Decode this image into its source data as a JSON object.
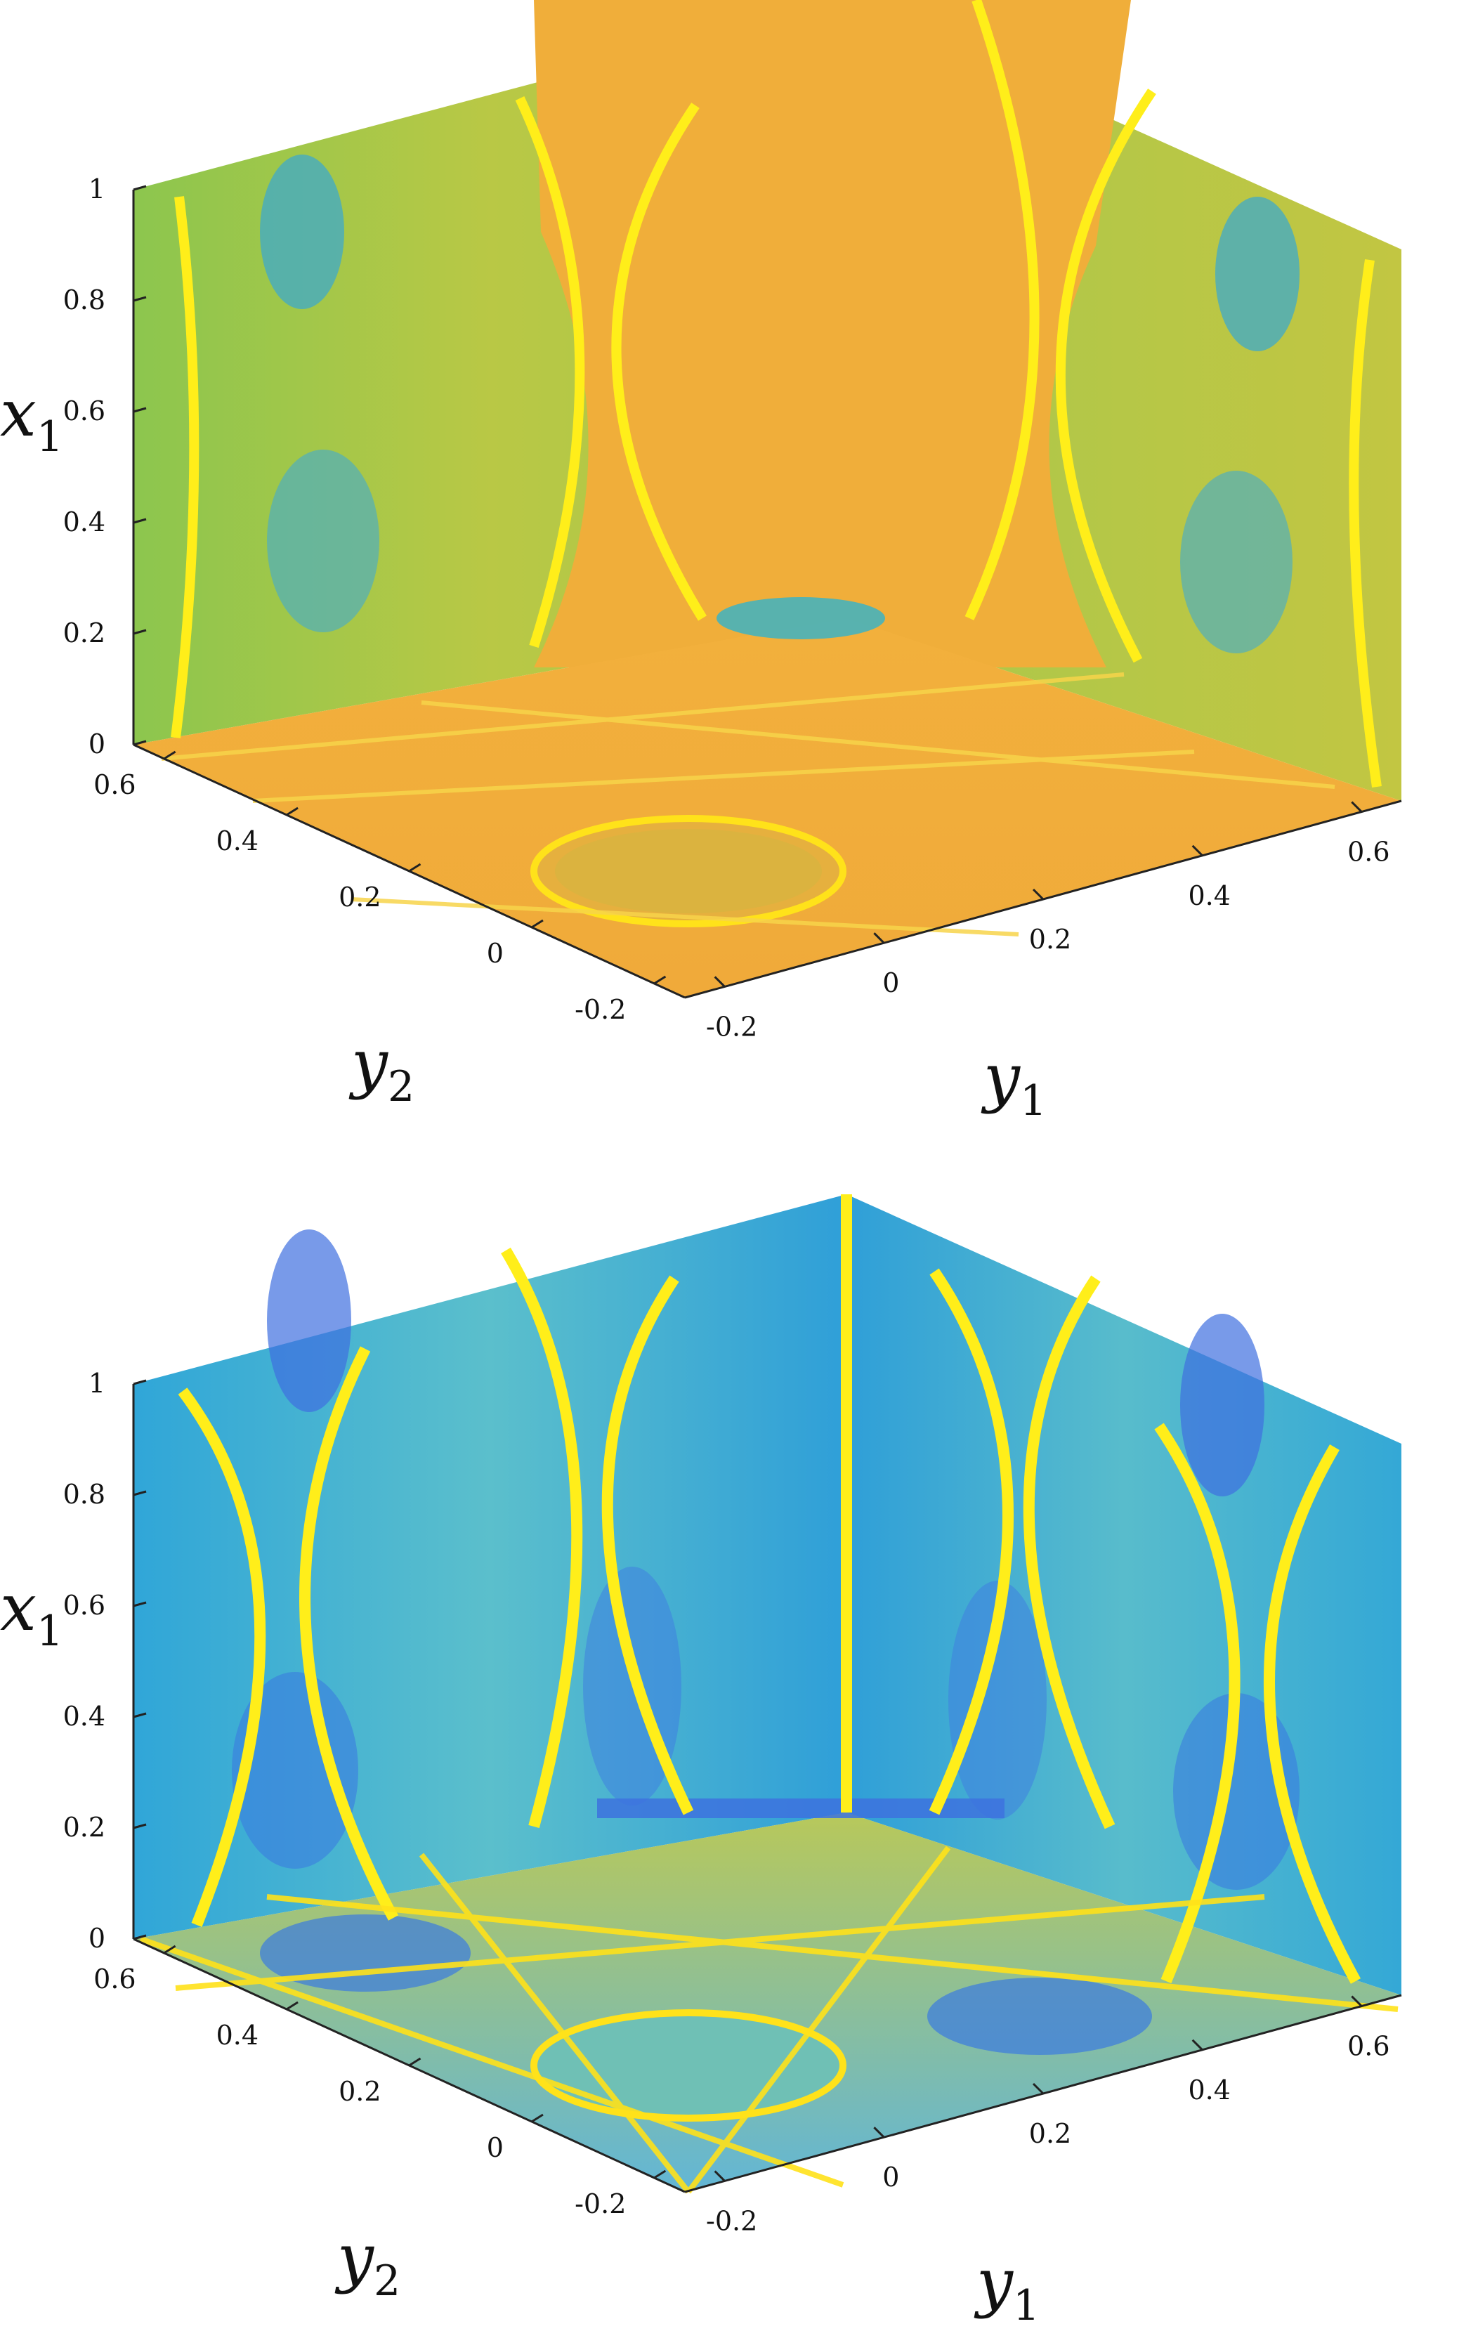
{
  "chart_data": [
    {
      "type": "heatmap",
      "title": "",
      "view": "3d-box-slices",
      "colormap": [
        "#3e7ee0",
        "#2fb4d0",
        "#7ec85a",
        "#e8b43a",
        "#ffe21a"
      ],
      "dominant_color": "#f0ad3c",
      "axes": {
        "x1": {
          "label": "x",
          "subscript": "1",
          "range": [
            0,
            1
          ],
          "ticks": [
            "0",
            "0.2",
            "0.4",
            "0.6",
            "0.8",
            "1"
          ]
        },
        "y1": {
          "label": "y",
          "subscript": "1",
          "range": [
            -0.25,
            0.65
          ],
          "ticks": [
            "-0.2",
            "0",
            "0.2",
            "0.4",
            "0.6"
          ]
        },
        "y2": {
          "label": "y",
          "subscript": "2",
          "range": [
            -0.25,
            0.65
          ],
          "ticks": [
            "-0.2",
            "0",
            "0.2",
            "0.4",
            "0.6"
          ]
        }
      }
    },
    {
      "type": "heatmap",
      "title": "",
      "view": "3d-box-slices",
      "colormap": [
        "#3e7ee0",
        "#2fb4d0",
        "#7ec85a",
        "#e8b43a",
        "#ffe21a"
      ],
      "dominant_color": "#2fa8d8",
      "axes": {
        "x1": {
          "label": "x",
          "subscript": "1",
          "range": [
            0,
            1
          ],
          "ticks": [
            "0",
            "0.2",
            "0.4",
            "0.6",
            "0.8",
            "1"
          ]
        },
        "y1": {
          "label": "y",
          "subscript": "1",
          "range": [
            -0.25,
            0.65
          ],
          "ticks": [
            "-0.2",
            "0",
            "0.2",
            "0.4",
            "0.6"
          ]
        },
        "y2": {
          "label": "y",
          "subscript": "2",
          "range": [
            -0.25,
            0.65
          ],
          "ticks": [
            "-0.2",
            "0",
            "0.2",
            "0.4",
            "0.6"
          ]
        }
      }
    }
  ]
}
